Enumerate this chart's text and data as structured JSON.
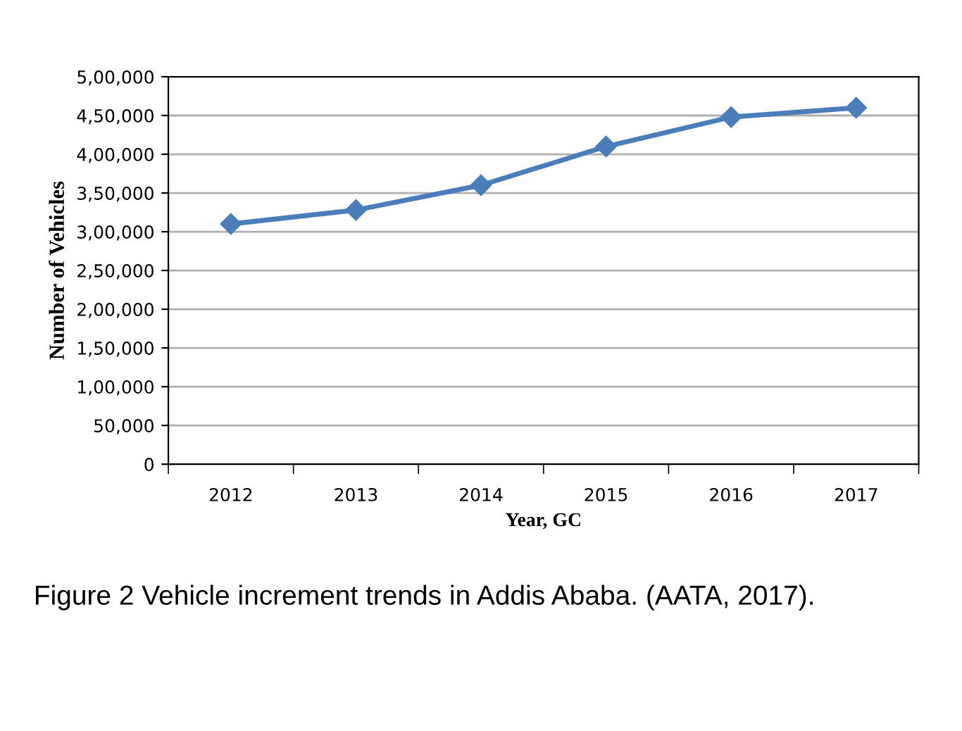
{
  "chart_data": {
    "type": "line",
    "xlabel": "Year, GC",
    "ylabel": "Number of Vehicles",
    "categories": [
      "2012",
      "2013",
      "2014",
      "2015",
      "2016",
      "2017"
    ],
    "series": [
      {
        "color": "#4a7ebb",
        "values": [
          310000,
          328000,
          360000,
          410000,
          448000,
          460000
        ]
      }
    ],
    "ylim": [
      0,
      500000
    ],
    "yticks": [
      0,
      {
        "value": 50000,
        "label": "50,000"
      },
      {
        "value": 100000,
        "label": "1,00,000"
      },
      {
        "value": 150000,
        "label": "1,50,000"
      },
      {
        "value": 200000,
        "label": "2,00,000"
      },
      {
        "value": 250000,
        "label": "2,50,000"
      },
      {
        "value": 300000,
        "label": "3,00,000"
      },
      {
        "value": 350000,
        "label": "3,50,000"
      },
      {
        "value": 400000,
        "label": "4,00,000"
      },
      {
        "value": 450000,
        "label": "4,50,000"
      },
      {
        "value": 500000,
        "label": "5,00,000"
      }
    ],
    "grid": "y",
    "marker": "diamond",
    "line_style": "solid",
    "annotations": [
      "Figure 2 Vehicle increment trends in Addis Ababa. (AATA, 2017)."
    ]
  }
}
